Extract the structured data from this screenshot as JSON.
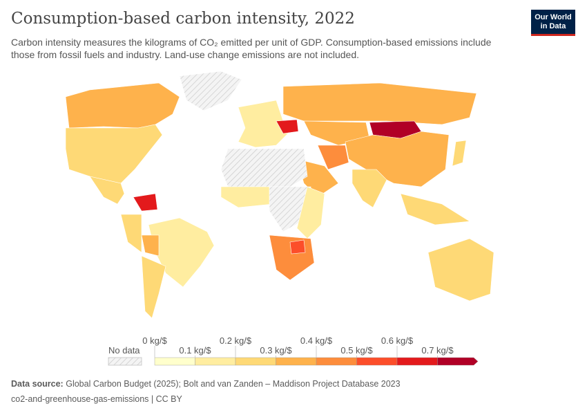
{
  "title": "Consumption-based carbon intensity, 2022",
  "subtitle": "Carbon intensity measures the kilograms of CO₂ emitted per unit of GDP. Consumption-based emissions include those from fossil fuels and industry. Land-use change emissions are not included.",
  "logo": "Our World in Data",
  "legend": {
    "no_data": "No data",
    "ticks": [
      "0 kg/$",
      "0.1 kg/$",
      "0.2 kg/$",
      "0.3 kg/$",
      "0.4 kg/$",
      "0.5 kg/$",
      "0.6 kg/$",
      "0.7 kg/$"
    ],
    "colors": [
      "#ffffcc",
      "#ffeda0",
      "#fed976",
      "#feb24c",
      "#fd8d3c",
      "#fc4e2a",
      "#e31a1c",
      "#b10026"
    ]
  },
  "regions": [
    {
      "name": "Canada",
      "bin": 3
    },
    {
      "name": "United States",
      "bin": 2
    },
    {
      "name": "Mexico",
      "bin": 2
    },
    {
      "name": "Greenland",
      "bin": -1
    },
    {
      "name": "Brazil",
      "bin": 1
    },
    {
      "name": "Venezuela",
      "bin": 6
    },
    {
      "name": "Bolivia",
      "bin": 3
    },
    {
      "name": "Argentina",
      "bin": 2
    },
    {
      "name": "Peru",
      "bin": 2
    },
    {
      "name": "Europe",
      "bin": 1
    },
    {
      "name": "Ukraine",
      "bin": 6
    },
    {
      "name": "Russia",
      "bin": 3
    },
    {
      "name": "Kazakhstan",
      "bin": 3
    },
    {
      "name": "Mongolia",
      "bin": 7
    },
    {
      "name": "China",
      "bin": 3
    },
    {
      "name": "India",
      "bin": 2
    },
    {
      "name": "Iran",
      "bin": 4
    },
    {
      "name": "Saudi Arabia",
      "bin": 3
    },
    {
      "name": "North Africa",
      "bin": -1
    },
    {
      "name": "West Africa",
      "bin": 1
    },
    {
      "name": "Central Africa",
      "bin": -1
    },
    {
      "name": "East Africa",
      "bin": 1
    },
    {
      "name": "Southern Africa",
      "bin": 4
    },
    {
      "name": "Zimbabwe",
      "bin": 5
    },
    {
      "name": "Australia",
      "bin": 2
    },
    {
      "name": "Southeast Asia",
      "bin": 2
    },
    {
      "name": "Japan",
      "bin": 2
    }
  ],
  "footer": {
    "source_label": "Data source:",
    "source": "Global Carbon Budget (2025); Bolt and van Zanden – Maddison Project Database 2023",
    "slug": "co2-and-greenhouse-gas-emissions | CC BY"
  }
}
